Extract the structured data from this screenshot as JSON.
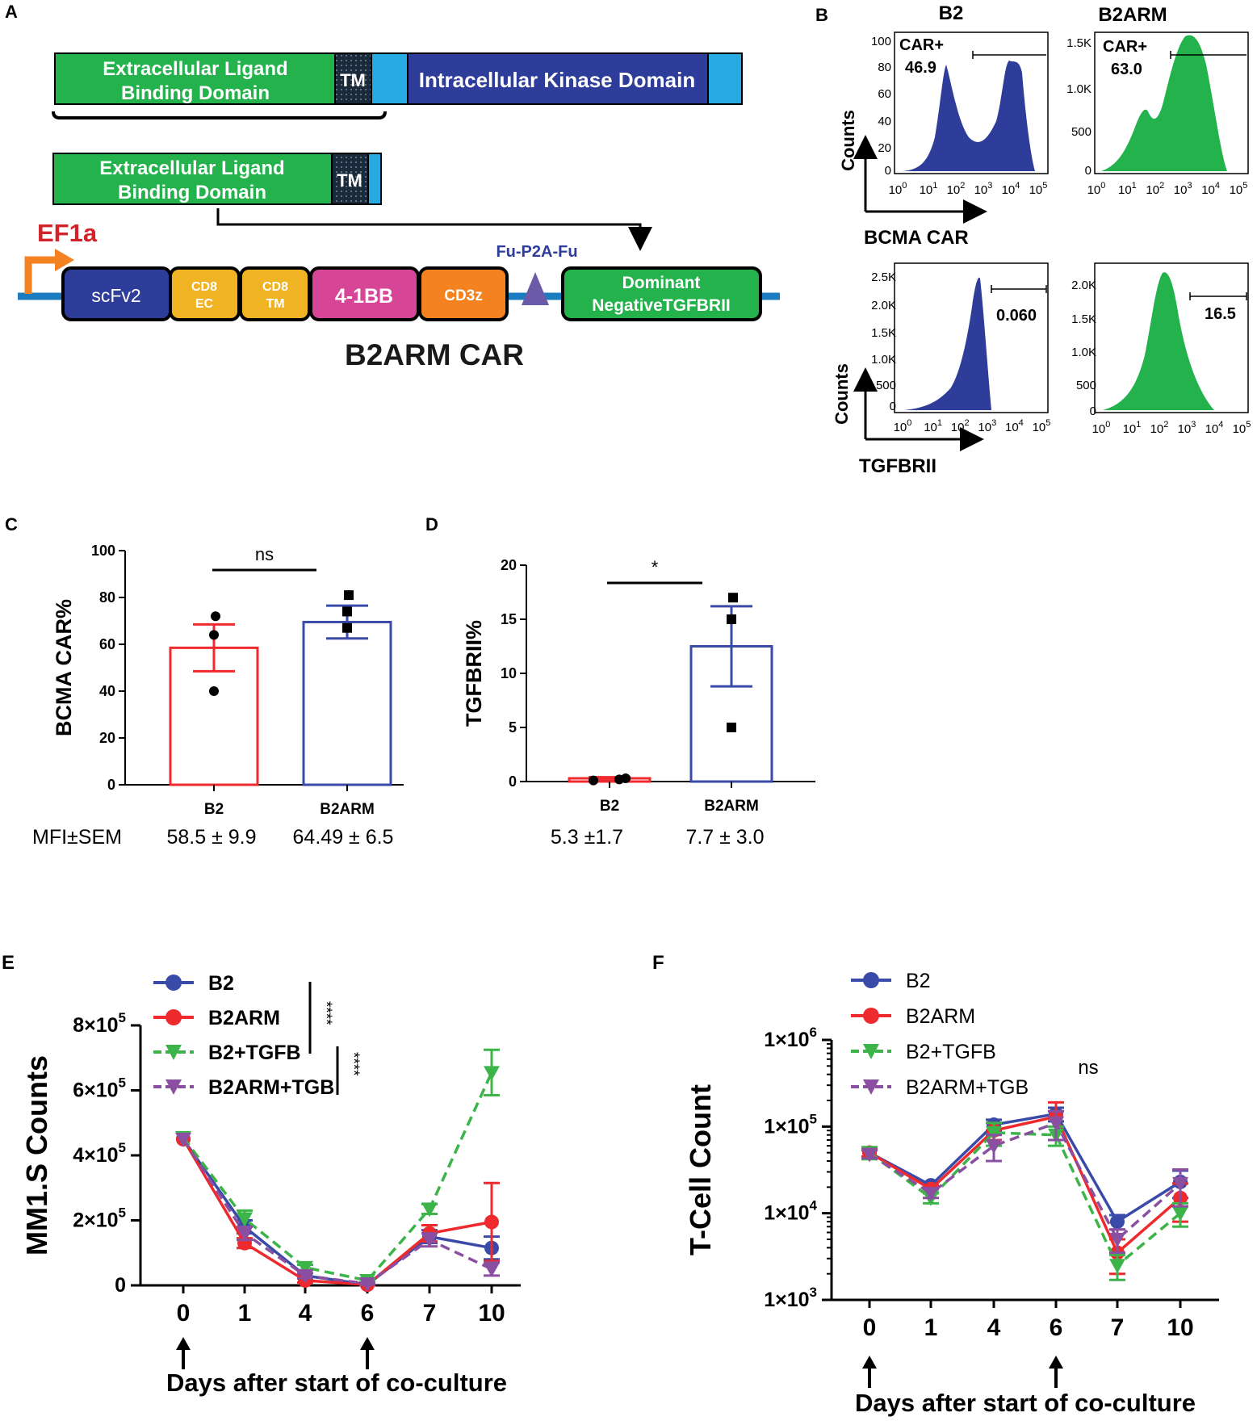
{
  "colors": {
    "b2": "#3a4aa8",
    "b2arm": "#ee2a2e",
    "tgfb": "#3cb44a",
    "armtgb": "#8a4fa0",
    "green_fill": "#23b24b",
    "dark_blue": "#2e3d99",
    "cyan": "#27a9e1",
    "orange": "#f58220",
    "pink": "#d64596",
    "gold": "#f0b323",
    "line_blue": "#1c7cc0",
    "purple": "#6a5aa8",
    "red_text": "#d2232a"
  },
  "panelA": {
    "label": "A",
    "receptor": {
      "ecd": [
        "Extracellular Ligand",
        "Binding Domain"
      ],
      "tm": "TM",
      "kinase": "Intracellular Kinase Domain"
    },
    "truncated": {
      "ecd": [
        "Extracellular Ligand",
        "Binding Domain"
      ],
      "tm": "TM"
    },
    "promoter": "EF1a",
    "scfv": "scFv2",
    "cd8ec": [
      "CD8",
      "EC"
    ],
    "cd8tm": [
      "CD8",
      "TM"
    ],
    "costim": "4-1BB",
    "cd3z": "CD3z",
    "p2a": "Fu-P2A-Fu",
    "dn": [
      "Dominant",
      "NegativeTGFBRII"
    ],
    "construct_title": "B2ARM CAR"
  },
  "panelB": {
    "label": "B",
    "col_titles": [
      "B2",
      "B2ARM"
    ],
    "counts_label": "Counts",
    "x_labels": [
      "BCMA CAR",
      "TGFBRII"
    ],
    "log_ticks": [
      "10",
      "10",
      "10",
      "10",
      "10",
      "10"
    ],
    "log_exps": [
      "0",
      "1",
      "2",
      "3",
      "4",
      "5"
    ],
    "histograms": [
      {
        "name": "B2 BCMA CAR",
        "gate_label": "CAR+",
        "gate_value": "46.9",
        "yticks": [
          "100",
          "80",
          "60",
          "40",
          "20",
          "0"
        ]
      },
      {
        "name": "B2ARM BCMA CAR",
        "gate_label": "CAR+",
        "gate_value": "63.0",
        "yticks": [
          "1.5K",
          "1.0K",
          "500",
          "0"
        ]
      },
      {
        "name": "B2 TGFBRII",
        "gate_label": "",
        "gate_value": "0.060",
        "yticks": [
          "2.5K",
          "2.0K",
          "1.5K",
          "1.0K",
          "500",
          "0"
        ]
      },
      {
        "name": "B2ARM TGFBRII",
        "gate_label": "",
        "gate_value": "16.5",
        "yticks": [
          "2.0K",
          "1.5K",
          "1.0K",
          "500",
          "0"
        ]
      }
    ]
  },
  "chart_data": [
    {
      "panel": "C",
      "type": "bar",
      "categories": [
        "B2",
        "B2ARM"
      ],
      "values": [
        58.5,
        69.5
      ],
      "sem": [
        10,
        7
      ],
      "points": [
        [
          72,
          64,
          40
        ],
        [
          81,
          74,
          67
        ]
      ],
      "ylabel": "BCMA CAR%",
      "ylim": [
        0,
        100
      ],
      "yticks": [
        "0",
        "20",
        "40",
        "60",
        "80",
        "100"
      ],
      "significance": "ns",
      "stats_header": "MFI±SEM",
      "stats": [
        "58.5 ± 9.9",
        "64.49 ± 6.5"
      ]
    },
    {
      "panel": "D",
      "type": "bar",
      "categories": [
        "B2",
        "B2ARM"
      ],
      "values": [
        0.3,
        12.5
      ],
      "sem": [
        0.1,
        3.7
      ],
      "points": [
        [
          0.1,
          0.3,
          0.2
        ],
        [
          17,
          15,
          5
        ]
      ],
      "ylabel": "TGFBRII%",
      "ylim": [
        0,
        20
      ],
      "yticks": [
        "0",
        "5",
        "10",
        "15",
        "20"
      ],
      "significance": "*",
      "stats": [
        "5.3 ±1.7",
        "7.7 ± 3.0"
      ]
    },
    {
      "panel": "E",
      "type": "line",
      "x": [
        "0",
        "1",
        "4",
        "6",
        "7",
        "10"
      ],
      "ylabel": "MM1.S Counts",
      "xlabel": "Days after start of co-culture",
      "ylim": [
        0,
        800000
      ],
      "ytick_values": [
        0,
        200000,
        400000,
        600000,
        800000
      ],
      "yticks": [
        "0",
        "2×10",
        "4×10",
        "6×10",
        "8×10"
      ],
      "ytick_exp": "5",
      "series": [
        {
          "name": "B2",
          "values": [
            450000,
            180000,
            30000,
            2000,
            150000,
            115000
          ],
          "err": [
            0,
            20000,
            8000,
            2000,
            20000,
            35000
          ]
        },
        {
          "name": "B2ARM",
          "values": [
            450000,
            130000,
            15000,
            2000,
            160000,
            195000
          ],
          "err": [
            0,
            15000,
            6000,
            2000,
            25000,
            120000
          ]
        },
        {
          "name": "B2+TGFB",
          "values": [
            455000,
            205000,
            55000,
            15000,
            235000,
            655000
          ],
          "err": [
            0,
            25000,
            8000,
            5000,
            15000,
            70000
          ]
        },
        {
          "name": "B2ARM+TGB",
          "values": [
            450000,
            160000,
            30000,
            5000,
            140000,
            50000
          ],
          "err": [
            0,
            20000,
            8000,
            3000,
            20000,
            20000
          ]
        }
      ],
      "significance": [
        "****",
        "****"
      ],
      "arrows_at": [
        "0",
        "6"
      ]
    },
    {
      "panel": "F",
      "type": "line",
      "yscale": "log",
      "x": [
        "0",
        "1",
        "4",
        "6",
        "7",
        "10"
      ],
      "ylabel": "T-Cell Count",
      "xlabel": "Days after start of co-culture",
      "ylim": [
        1000,
        1000000
      ],
      "ytick_values": [
        1000,
        10000,
        100000,
        1000000
      ],
      "yticks": [
        "1×10",
        "1×10",
        "1×10",
        "1×10"
      ],
      "ytick_exps": [
        "3",
        "4",
        "5",
        "6"
      ],
      "series": [
        {
          "name": "B2",
          "values": [
            50000,
            21000,
            105000,
            140000,
            8000,
            23000
          ],
          "err": [
            5000,
            2000,
            15000,
            25000,
            1500,
            8000
          ]
        },
        {
          "name": "B2ARM",
          "values": [
            50000,
            19000,
            90000,
            130000,
            3500,
            15000
          ],
          "err": [
            5000,
            2000,
            20000,
            60000,
            1500,
            7000
          ]
        },
        {
          "name": "B2+TGFB",
          "values": [
            50000,
            15000,
            85000,
            80000,
            2500,
            10000
          ],
          "err": [
            8000,
            2000,
            25000,
            20000,
            800,
            3000
          ]
        },
        {
          "name": "B2ARM+TGB",
          "values": [
            48000,
            17000,
            60000,
            110000,
            5000,
            22000
          ],
          "err": [
            5000,
            2000,
            20000,
            40000,
            1500,
            10000
          ]
        }
      ],
      "significance": "ns",
      "arrows_at": [
        "0",
        "6"
      ]
    }
  ]
}
